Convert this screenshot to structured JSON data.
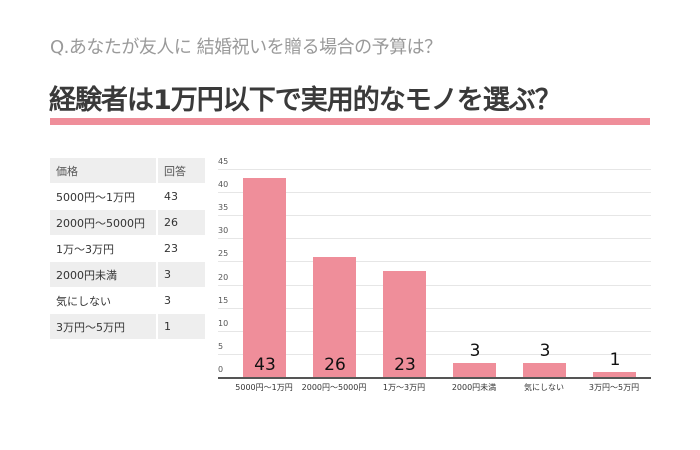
{
  "header": {
    "question": "Q.あなたが友人に 結婚祝いを贈る場合の予算は？",
    "headline": "経験者は1万円以下で実用的なモノを選ぶ？",
    "accent_color": "#EF8E9A"
  },
  "table": {
    "columns": [
      "価格",
      "回答"
    ],
    "rows": [
      [
        "5000円～1万円",
        "43"
      ],
      [
        "2000円～5000円",
        "26"
      ],
      [
        "1万～3万円",
        "23"
      ],
      [
        "2000円未満",
        "3"
      ],
      [
        "気にしない",
        "3"
      ],
      [
        "3万円～5万円",
        "1"
      ]
    ]
  },
  "chart_data": {
    "type": "bar",
    "title": "",
    "xlabel": "",
    "ylabel": "",
    "categories": [
      "5000円～1万円",
      "2000円～5000円",
      "1万～3万円",
      "2000円未満",
      "気にしない",
      "3万円～5万円"
    ],
    "values": [
      43,
      26,
      23,
      3,
      3,
      1
    ],
    "value_labels": [
      "43",
      "26",
      "23",
      "3",
      "3",
      "1"
    ],
    "ylim": [
      0,
      45
    ],
    "yticks": [
      "45",
      "40",
      "35",
      "30",
      "25",
      "20",
      "15",
      "10",
      "5",
      "0"
    ],
    "grid": true,
    "legend": "none",
    "bar_color": "#EF8E9A"
  }
}
